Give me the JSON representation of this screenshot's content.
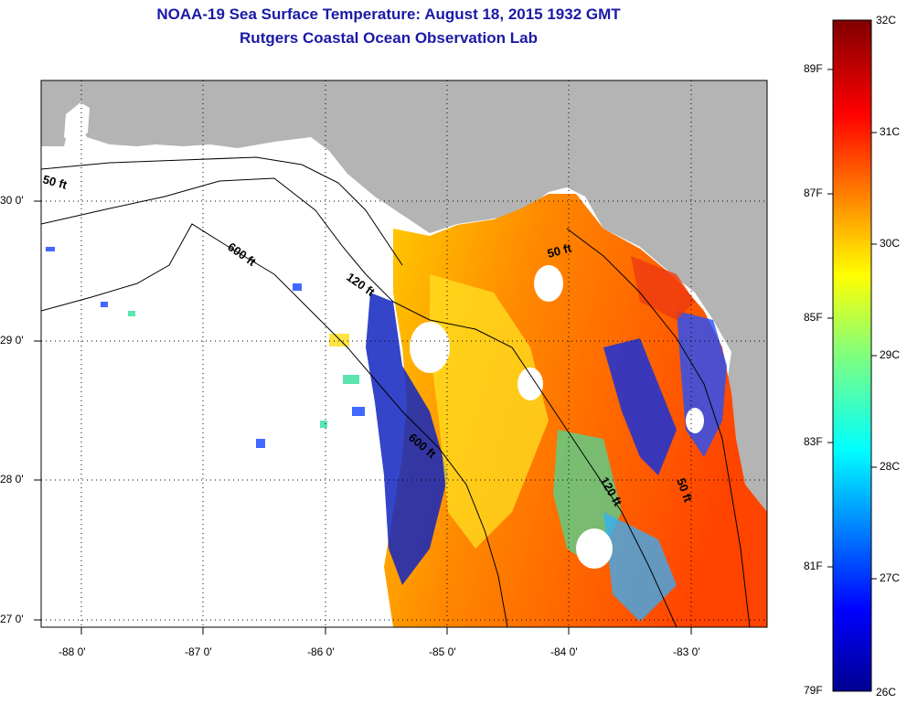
{
  "header": {
    "title": "NOAA-19 Sea Surface Temperature:  August 18, 2015 1932 GMT",
    "subtitle": "Rutgers Coastal Ocean Observation Lab"
  },
  "map": {
    "lon_ticks": [
      "-88 0'",
      "-87 0'",
      "-86 0'",
      "-85 0'",
      "-84 0'",
      "-83 0'"
    ],
    "lat_ticks": [
      "30 0'",
      "29 0'",
      "28 0'",
      "27 0'"
    ],
    "contour_labels": [
      "50 ft",
      "600 ft",
      "120 ft",
      "50 ft",
      "600 ft",
      "120 ft",
      "50 ft"
    ],
    "colors": {
      "land": "#b4b4b4",
      "ocean_nodata": "#ffffff",
      "coast": "#000000"
    }
  },
  "colorbar": {
    "celsius_labels": [
      "32C",
      "31C",
      "30C",
      "29C",
      "28C",
      "27C",
      "26C"
    ],
    "fahrenheit_labels": [
      "89F",
      "87F",
      "85F",
      "83F",
      "81F",
      "79F"
    ],
    "range_c": [
      26,
      32
    ]
  }
}
